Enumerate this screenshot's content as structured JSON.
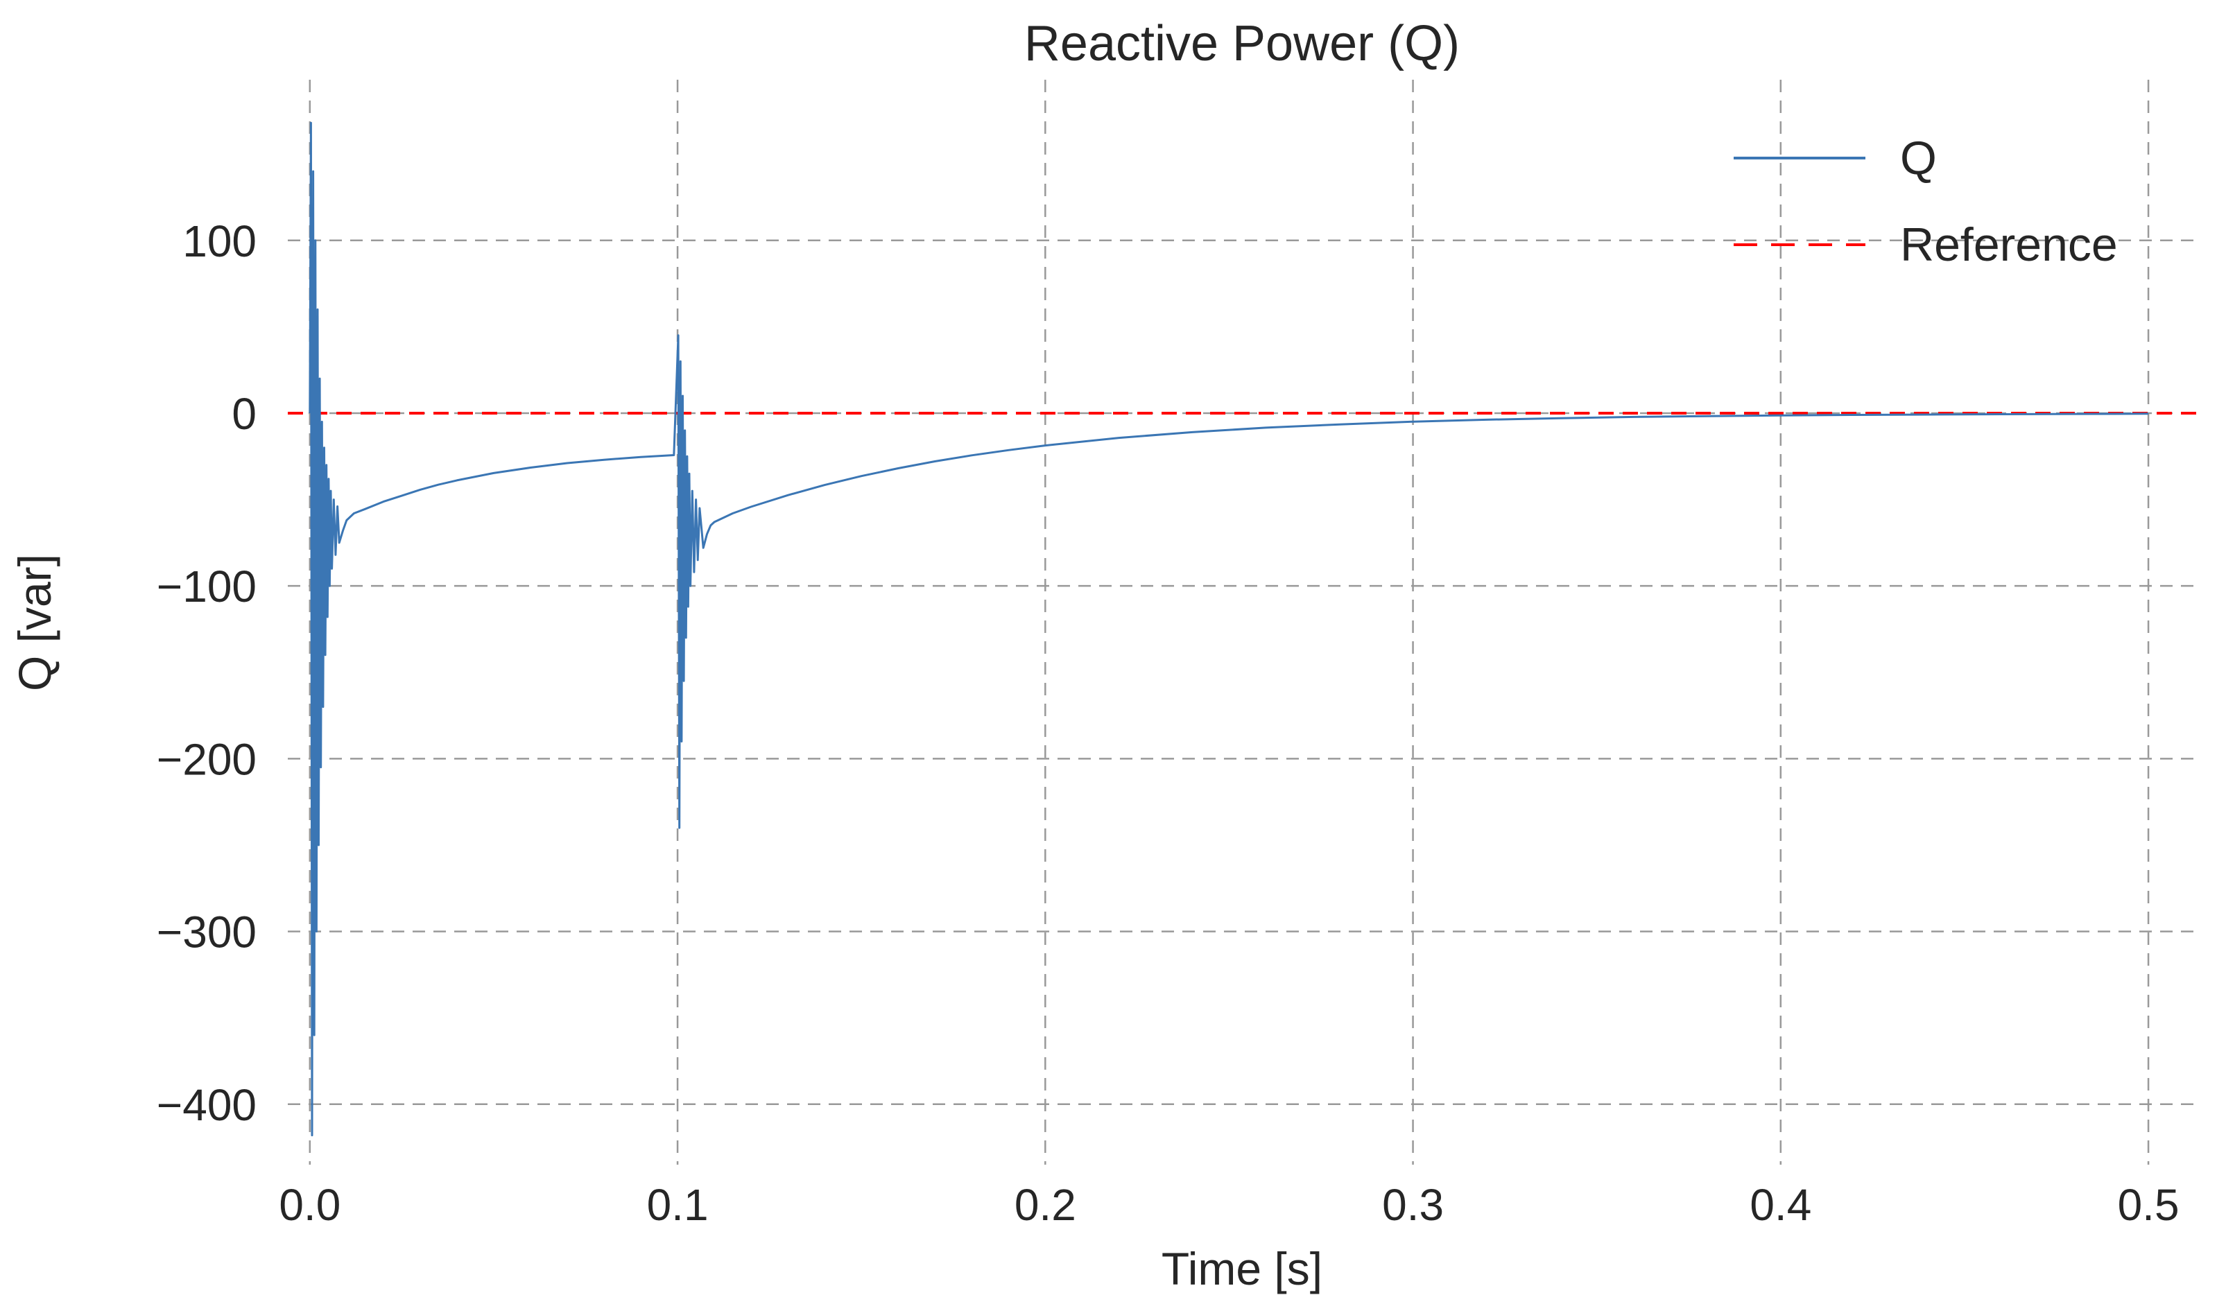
{
  "chart_data": {
    "type": "line",
    "title": "Reactive Power (Q)",
    "xlabel": "Time [s]",
    "ylabel": "Q [var]",
    "xlim": [
      -0.006,
      0.513
    ],
    "ylim": [
      -435,
      193
    ],
    "grid": "on",
    "grid_color": "#999999",
    "legend_position": "upper right",
    "xticks": {
      "values": [
        0.0,
        0.1,
        0.2,
        0.3,
        0.4,
        0.5
      ],
      "labels": [
        "0.0",
        "0.1",
        "0.2",
        "0.3",
        "0.4",
        "0.5"
      ]
    },
    "yticks": {
      "values": [
        100,
        0,
        -100,
        -200,
        -300,
        -400
      ],
      "labels": [
        "100",
        "0",
        "−100",
        "−200",
        "−300",
        "−400"
      ]
    },
    "reference": {
      "name": "Reference",
      "value": 0,
      "color": "#ff0000",
      "style": "dashed"
    },
    "series": [
      {
        "name": "Q",
        "color": "#3b76b4",
        "points": [
          [
            0.0,
            0
          ],
          [
            0.0003,
            168
          ],
          [
            0.0006,
            -418
          ],
          [
            0.0009,
            140
          ],
          [
            0.0012,
            -360
          ],
          [
            0.0015,
            100
          ],
          [
            0.0018,
            -300
          ],
          [
            0.0021,
            60
          ],
          [
            0.0024,
            -250
          ],
          [
            0.0027,
            20
          ],
          [
            0.003,
            -205
          ],
          [
            0.0033,
            -5
          ],
          [
            0.0036,
            -170
          ],
          [
            0.0039,
            -20
          ],
          [
            0.0042,
            -140
          ],
          [
            0.0045,
            -30
          ],
          [
            0.0048,
            -118
          ],
          [
            0.0051,
            -38
          ],
          [
            0.0054,
            -100
          ],
          [
            0.0057,
            -45
          ],
          [
            0.006,
            -90
          ],
          [
            0.0065,
            -50
          ],
          [
            0.007,
            -82
          ],
          [
            0.0075,
            -54
          ],
          [
            0.008,
            -75
          ],
          [
            0.009,
            -68
          ],
          [
            0.01,
            -62
          ],
          [
            0.012,
            -58
          ],
          [
            0.015,
            -55.5
          ],
          [
            0.02,
            -51.2
          ],
          [
            0.025,
            -47.8
          ],
          [
            0.03,
            -44.3
          ],
          [
            0.035,
            -41.4
          ],
          [
            0.04,
            -38.9
          ],
          [
            0.05,
            -34.7
          ],
          [
            0.06,
            -31.5
          ],
          [
            0.07,
            -28.9
          ],
          [
            0.08,
            -27.0
          ],
          [
            0.09,
            -25.4
          ],
          [
            0.099,
            -24.3
          ],
          [
            0.1002,
            45
          ],
          [
            0.1005,
            -240
          ],
          [
            0.1008,
            30
          ],
          [
            0.1011,
            -190
          ],
          [
            0.1014,
            10
          ],
          [
            0.1017,
            -155
          ],
          [
            0.102,
            -10
          ],
          [
            0.1023,
            -130
          ],
          [
            0.1026,
            -25
          ],
          [
            0.1029,
            -112
          ],
          [
            0.1032,
            -35
          ],
          [
            0.1035,
            -100
          ],
          [
            0.104,
            -45
          ],
          [
            0.1045,
            -92
          ],
          [
            0.105,
            -50
          ],
          [
            0.1055,
            -85
          ],
          [
            0.106,
            -55
          ],
          [
            0.107,
            -78
          ],
          [
            0.108,
            -70
          ],
          [
            0.109,
            -65
          ],
          [
            0.11,
            -63
          ],
          [
            0.115,
            -58
          ],
          [
            0.12,
            -54.2
          ],
          [
            0.13,
            -47.5
          ],
          [
            0.14,
            -41.6
          ],
          [
            0.15,
            -36.4
          ],
          [
            0.16,
            -31.9
          ],
          [
            0.17,
            -27.9
          ],
          [
            0.18,
            -24.4
          ],
          [
            0.19,
            -21.4
          ],
          [
            0.2,
            -18.7
          ],
          [
            0.22,
            -14.3
          ],
          [
            0.24,
            -11.0
          ],
          [
            0.26,
            -8.4
          ],
          [
            0.28,
            -6.5
          ],
          [
            0.3,
            -4.9
          ],
          [
            0.32,
            -3.8
          ],
          [
            0.34,
            -2.9
          ],
          [
            0.36,
            -2.2
          ],
          [
            0.38,
            -1.7
          ],
          [
            0.4,
            -1.3
          ],
          [
            0.42,
            -1.0
          ],
          [
            0.44,
            -0.8
          ],
          [
            0.46,
            -0.6
          ],
          [
            0.48,
            -0.45
          ],
          [
            0.5,
            -0.35
          ]
        ]
      }
    ],
    "legend": {
      "q_label": "Q",
      "reference_label": "Reference"
    }
  }
}
